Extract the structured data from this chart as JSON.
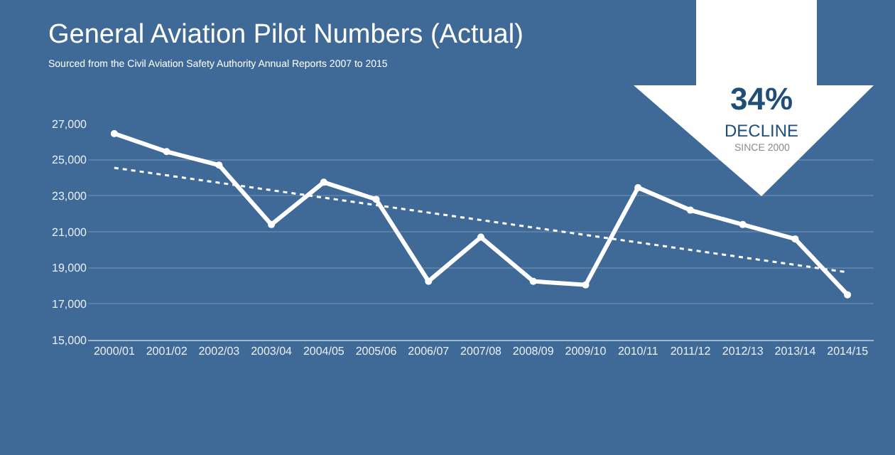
{
  "chart_data": {
    "type": "line",
    "title": "General Aviation Pilot Numbers (Actual)",
    "subtitle": "Sourced from the Civil Aviation Safety Authority Annual Reports 2007 to 2015",
    "categories": [
      "2000/01",
      "2001/02",
      "2002/03",
      "2003/04",
      "2004/05",
      "2005/06",
      "2006/07",
      "2007/08",
      "2008/09",
      "2009/10",
      "2010/11",
      "2011/12",
      "2012/13",
      "2013/14",
      "2014/15"
    ],
    "series": [
      {
        "color": "#ffffff",
        "marker": "circle",
        "line_style": "solid",
        "values": [
          26450,
          25450,
          24700,
          21400,
          23750,
          22800,
          18250,
          20700,
          18250,
          18050,
          23450,
          22200,
          21400,
          20600,
          17500
        ]
      },
      {
        "color": "#ffffff",
        "marker": "none",
        "line_style": "dotted",
        "x": [
          "2000/01",
          "2014/15"
        ],
        "values": [
          24550,
          18750
        ]
      }
    ],
    "ylim": [
      15000,
      27000
    ],
    "yticks": [
      {
        "value": 15000,
        "label": "15,000"
      },
      {
        "value": 17000,
        "label": "17,000"
      },
      {
        "value": 19000,
        "label": "19,000"
      },
      {
        "value": 21000,
        "label": "21,000"
      },
      {
        "value": 23000,
        "label": "23,000"
      },
      {
        "value": 25000,
        "label": "25,000"
      },
      {
        "value": 27000,
        "label": "27,000"
      }
    ],
    "grid": "y",
    "annotations": [
      "34%",
      "DECLINE",
      "SINCE 2000"
    ]
  }
}
